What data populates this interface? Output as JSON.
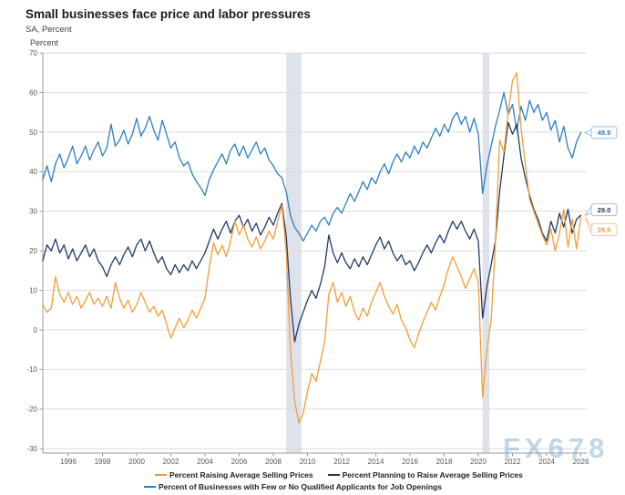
{
  "title": "Small businesses face price and labor pressures",
  "subtitle": "SA, Percent",
  "axis_unit_label": "Percent",
  "watermark": "FX678",
  "colors": {
    "recession_band": "#dee2ea",
    "gridline": "#dcdcdc",
    "axis": "#9b9b9b",
    "tick_label": "#595959",
    "title": "#1a1a1a",
    "watermark": "#8fb6d8"
  },
  "chart_data": {
    "type": "line",
    "title": "Small businesses face price and labor pressures",
    "subtitle": "SA, Percent",
    "ylabel": "Percent",
    "ylim": [
      -30,
      70
    ],
    "y_ticks": [
      70,
      60,
      50,
      40,
      30,
      20,
      10,
      0,
      -10,
      -20,
      -30
    ],
    "x_ticks": [
      1996,
      1998,
      2000,
      2002,
      2004,
      2006,
      2008,
      2010,
      2012,
      2014,
      2016,
      2018,
      2020,
      2022,
      2024,
      2026
    ],
    "grid": true,
    "legend_position": "bottom",
    "recession_bands": [
      [
        2008.75,
        2009.65
      ],
      [
        2020.25,
        2020.65
      ]
    ],
    "x_start": 1994.5,
    "x_step": 0.25,
    "series": [
      {
        "name": "Percent Raising Average Selling Prices",
        "color": "#f49d38",
        "end_label": "28.6",
        "end_label_border": "#f7c491",
        "values": [
          6.5,
          4.5,
          5.5,
          13.5,
          9,
          7,
          9.5,
          6.5,
          8.5,
          5.5,
          7.5,
          9.5,
          6.5,
          8,
          6,
          8.5,
          5.5,
          12,
          8,
          5.5,
          7.5,
          4.5,
          6.5,
          9.5,
          7,
          4.5,
          6,
          3.5,
          5,
          1.5,
          -2,
          0.5,
          3,
          0.5,
          2.5,
          5,
          3,
          5.5,
          8,
          16,
          22,
          19,
          21.5,
          18.5,
          22.5,
          27.5,
          24,
          26.5,
          23,
          21,
          23.5,
          20.5,
          22.5,
          25,
          23,
          27.5,
          31.5,
          20,
          -5,
          -18,
          -23.5,
          -21,
          -15.5,
          -11,
          -13,
          -8,
          -3,
          9,
          12,
          7,
          9.5,
          6,
          8.5,
          4.5,
          2.5,
          5.5,
          3.5,
          7,
          9.5,
          12,
          8.5,
          6,
          4,
          6.5,
          2.5,
          0.5,
          -2.5,
          -4.5,
          -1,
          2,
          4.5,
          7,
          5,
          8.5,
          11.5,
          15.5,
          18.5,
          16,
          13.5,
          10.5,
          13,
          15.5,
          12,
          -17,
          -5,
          2.5,
          22,
          48,
          45,
          55,
          63,
          65,
          51,
          42,
          33,
          30,
          27,
          24,
          21.5,
          25.5,
          20,
          24.5,
          30.5,
          21,
          28,
          20.5,
          28.6
        ]
      },
      {
        "name": "Percent Planning to Raise Average Selling Prices",
        "color": "#1f3a68",
        "end_label": "29.0",
        "end_label_border": "#aeb8c9",
        "values": [
          17.5,
          21.5,
          20,
          23,
          19.5,
          21.5,
          18,
          20.5,
          17.5,
          19.5,
          21.5,
          18.5,
          20.5,
          17.5,
          16,
          13.5,
          16.5,
          18.5,
          16.5,
          19,
          21,
          18.5,
          21.5,
          23,
          20,
          22.5,
          19.5,
          17,
          18.5,
          15.5,
          14,
          16.5,
          14.5,
          16.5,
          15,
          17.5,
          15.5,
          17.5,
          19.5,
          22.5,
          25.5,
          23,
          25.5,
          27.5,
          24.5,
          27.5,
          29,
          26,
          28,
          25,
          27,
          24,
          26,
          28.5,
          26.5,
          29.5,
          32,
          24,
          8,
          -3,
          1.5,
          4.5,
          7.5,
          10,
          8,
          11.5,
          16,
          24,
          19.5,
          17,
          19.5,
          17,
          15.5,
          18,
          16,
          18.5,
          16.5,
          19,
          21.5,
          23.5,
          20.5,
          22.5,
          19.5,
          17.5,
          19,
          16.5,
          17.5,
          15,
          17,
          19.5,
          21.5,
          19.5,
          22,
          24,
          22,
          25,
          27.5,
          25.5,
          27.5,
          25,
          23,
          25.5,
          22.5,
          3,
          11,
          16.5,
          22.5,
          35,
          44,
          52.5,
          49.5,
          52,
          43.5,
          38.5,
          34,
          30.5,
          28,
          24.5,
          22.5,
          27.5,
          24.5,
          29.5,
          26,
          30.5,
          24.5,
          28,
          29.0
        ]
      },
      {
        "name": "Percent of Businesses with Few or No Qualified Applicants for Job Openings",
        "color": "#2e7ebf",
        "end_label": "49.9",
        "end_label_border": "#8fc0e4",
        "values": [
          38,
          41.5,
          37.5,
          42,
          44.5,
          41,
          43.5,
          46.5,
          42,
          44,
          46.5,
          43,
          45.5,
          47.5,
          44,
          46,
          52,
          46.5,
          48,
          50.5,
          47,
          49.5,
          53.5,
          49,
          51,
          54,
          50.5,
          48,
          53,
          49.5,
          46,
          47.5,
          43.5,
          41.5,
          42.5,
          39.5,
          37.5,
          36,
          34,
          38,
          40.5,
          42.5,
          44.5,
          42,
          45.5,
          47,
          44,
          46.5,
          43.5,
          45.5,
          47.5,
          44.5,
          46,
          43,
          41.5,
          39.5,
          38.5,
          35,
          29,
          26,
          24.5,
          22.5,
          24.5,
          26.5,
          25,
          27.5,
          28.5,
          26.5,
          29.5,
          31,
          29.5,
          32,
          34.5,
          32.5,
          35,
          37.5,
          35.5,
          38.5,
          37,
          40,
          42,
          39.5,
          42.5,
          44.5,
          42.5,
          45,
          43.5,
          46.5,
          44.5,
          47.5,
          46,
          48.5,
          51,
          49,
          52,
          50,
          53.5,
          55,
          52,
          54,
          50,
          53.5,
          49.5,
          34.5,
          41.5,
          46.5,
          51.5,
          55.5,
          60,
          54.5,
          57,
          50.5,
          56.5,
          53,
          58,
          55,
          57,
          53,
          55,
          50.5,
          53,
          47.5,
          51.5,
          46,
          43.5,
          47.5,
          49.9
        ]
      }
    ]
  }
}
